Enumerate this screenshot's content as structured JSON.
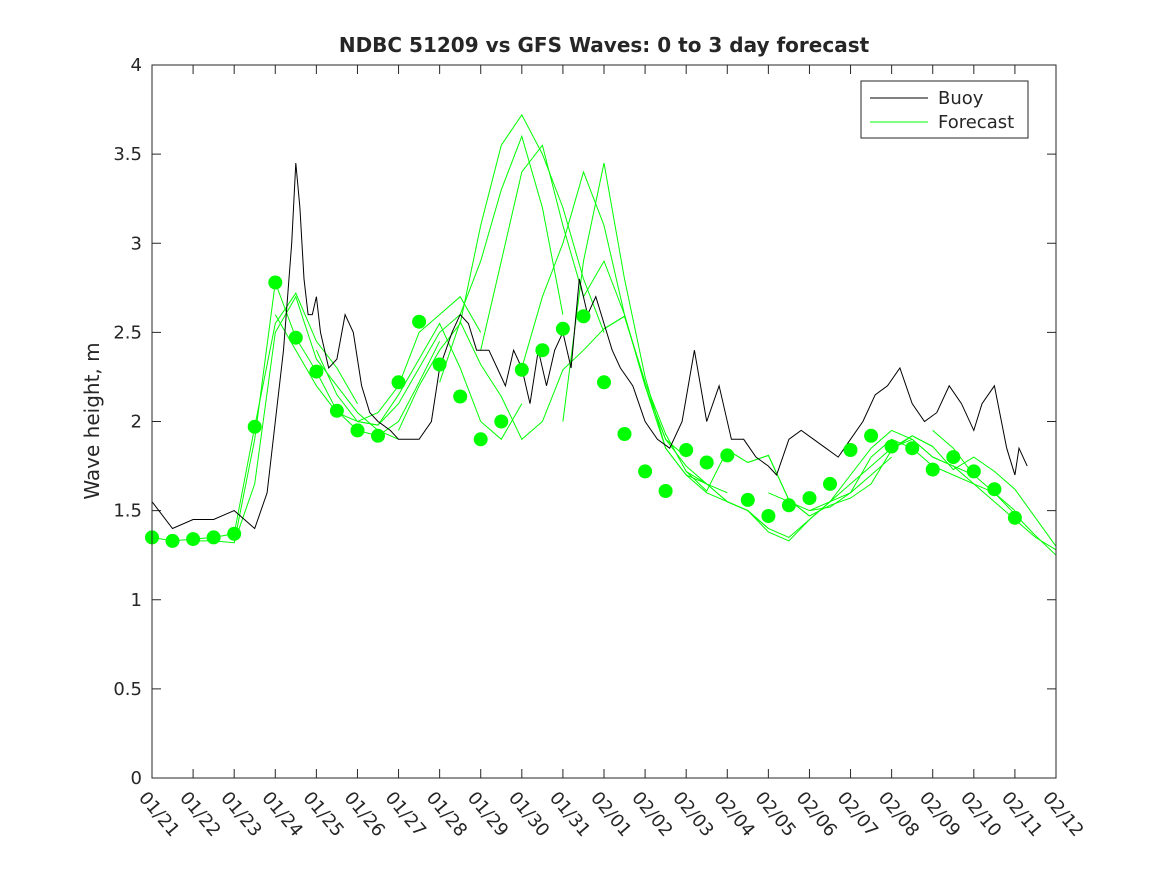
{
  "chart_data": {
    "type": "line",
    "title": "NDBC 51209 vs GFS Waves: 0 to 3 day forecast",
    "xlabel": "",
    "ylabel": "Wave height, m",
    "xlim": [
      0,
      22
    ],
    "ylim": [
      0,
      4
    ],
    "yticks": [
      0,
      0.5,
      1,
      1.5,
      2,
      2.5,
      3,
      3.5,
      4
    ],
    "yticklabels": [
      "0",
      "0.5",
      "1",
      "1.5",
      "2",
      "2.5",
      "3",
      "3.5",
      "4"
    ],
    "xticks": [
      0,
      1,
      2,
      3,
      4,
      5,
      6,
      7,
      8,
      9,
      10,
      11,
      12,
      13,
      14,
      15,
      16,
      17,
      18,
      19,
      20,
      21,
      22
    ],
    "xticklabels": [
      "01/21",
      "01/22",
      "01/23",
      "01/24",
      "01/25",
      "01/26",
      "01/27",
      "01/28",
      "01/29",
      "01/30",
      "01/31",
      "02/01",
      "02/02",
      "02/03",
      "02/04",
      "02/05",
      "02/06",
      "02/07",
      "02/08",
      "02/09",
      "02/10",
      "02/11",
      "02/12"
    ],
    "legend": {
      "location": "top-right",
      "entries": [
        "Buoy",
        "Forecast"
      ]
    },
    "colors": {
      "buoy": "#000000",
      "forecast": "#00ff00",
      "axis": "#262626"
    },
    "buoy": {
      "name": "Buoy",
      "x": [
        0,
        0.5,
        1,
        1.5,
        2,
        2.5,
        2.8,
        3.2,
        3.4,
        3.5,
        3.6,
        3.7,
        3.8,
        3.9,
        4,
        4.1,
        4.3,
        4.5,
        4.7,
        4.9,
        5.1,
        5.3,
        5.5,
        5.8,
        6,
        6.2,
        6.5,
        6.8,
        7,
        7.3,
        7.5,
        7.7,
        7.9,
        8.2,
        8.4,
        8.6,
        8.8,
        9,
        9.2,
        9.4,
        9.6,
        9.8,
        10,
        10.2,
        10.4,
        10.6,
        10.8,
        11,
        11.2,
        11.4,
        11.7,
        12,
        12.3,
        12.6,
        12.9,
        13.2,
        13.5,
        13.8,
        14.1,
        14.4,
        14.7,
        15,
        15.2,
        15.5,
        15.8,
        16.1,
        16.4,
        16.7,
        17,
        17.3,
        17.6,
        17.9,
        18.2,
        18.5,
        18.8,
        19.1,
        19.4,
        19.7,
        20,
        20.2,
        20.5,
        20.8,
        21,
        21.1,
        21.3
      ],
      "values": [
        1.55,
        1.4,
        1.45,
        1.45,
        1.5,
        1.4,
        1.6,
        2.4,
        3.0,
        3.45,
        3.2,
        2.8,
        2.6,
        2.6,
        2.7,
        2.5,
        2.3,
        2.35,
        2.6,
        2.5,
        2.2,
        2.05,
        2.0,
        1.95,
        1.9,
        1.9,
        1.9,
        2.0,
        2.3,
        2.5,
        2.6,
        2.55,
        2.4,
        2.4,
        2.3,
        2.2,
        2.4,
        2.3,
        2.1,
        2.4,
        2.2,
        2.4,
        2.5,
        2.3,
        2.8,
        2.6,
        2.7,
        2.55,
        2.4,
        2.3,
        2.2,
        2.0,
        1.9,
        1.85,
        2.0,
        2.4,
        2.0,
        2.2,
        1.9,
        1.9,
        1.8,
        1.75,
        1.7,
        1.9,
        1.95,
        1.9,
        1.85,
        1.8,
        1.9,
        2.0,
        2.15,
        2.2,
        2.3,
        2.1,
        2.0,
        2.05,
        2.2,
        2.1,
        1.95,
        2.1,
        2.2,
        1.85,
        1.7,
        1.85,
        1.75
      ]
    },
    "forecast_runs": [
      {
        "name": "Forecast",
        "x": [
          0,
          0.5,
          1,
          1.5,
          2,
          2.5,
          3,
          3.5,
          4,
          4.5,
          5
        ],
        "values": [
          1.35,
          1.33,
          1.34,
          1.35,
          1.37,
          1.97,
          2.55,
          2.72,
          2.45,
          2.3,
          2.1
        ]
      },
      {
        "name": "Forecast",
        "x": [
          1,
          1.5,
          2,
          2.5,
          3,
          3.5,
          4,
          4.5,
          5,
          5.5,
          6
        ],
        "values": [
          1.33,
          1.33,
          1.32,
          1.65,
          2.5,
          2.7,
          2.35,
          2.2,
          2.05,
          1.95,
          1.9
        ]
      },
      {
        "name": "Forecast",
        "x": [
          2,
          2.5,
          3,
          3.5,
          4,
          4.5,
          5,
          5.5,
          6,
          6.5,
          7
        ],
        "values": [
          1.32,
          1.9,
          2.78,
          2.47,
          2.28,
          2.06,
          1.95,
          1.92,
          2.0,
          2.22,
          2.45
        ]
      },
      {
        "name": "Forecast",
        "x": [
          3,
          3.5,
          4,
          4.5,
          5,
          5.5,
          6,
          6.5,
          7,
          7.5,
          8
        ],
        "values": [
          2.6,
          2.4,
          2.2,
          2.05,
          2.0,
          2.05,
          2.2,
          2.5,
          2.6,
          2.7,
          2.5
        ]
      },
      {
        "name": "Forecast",
        "x": [
          4,
          4.5,
          5,
          5.5,
          6,
          6.5,
          7,
          7.5,
          8,
          8.5,
          9
        ],
        "values": [
          2.4,
          2.15,
          2.0,
          1.98,
          2.15,
          2.35,
          2.55,
          2.3,
          2.0,
          1.9,
          2.1
        ]
      },
      {
        "name": "Forecast",
        "x": [
          5,
          5.5,
          6,
          6.5,
          7,
          7.5,
          8,
          8.5,
          9,
          9.5,
          10
        ],
        "values": [
          2.0,
          1.98,
          2.1,
          2.3,
          2.5,
          2.6,
          2.9,
          3.3,
          3.6,
          3.2,
          2.6
        ]
      },
      {
        "name": "Forecast",
        "x": [
          6,
          6.5,
          7,
          7.5,
          8,
          8.5,
          9,
          9.5,
          10,
          10.5,
          11
        ],
        "values": [
          1.95,
          2.2,
          2.4,
          2.55,
          3.1,
          3.55,
          3.72,
          3.5,
          3.2,
          2.8,
          2.5
        ]
      },
      {
        "name": "Forecast",
        "x": [
          7,
          7.5,
          8,
          8.5,
          9,
          9.5,
          10,
          10.5,
          11,
          11.5,
          12
        ],
        "values": [
          2.22,
          2.56,
          2.32,
          2.14,
          1.9,
          2.0,
          2.29,
          2.4,
          2.52,
          2.59,
          2.22
        ]
      },
      {
        "name": "Forecast",
        "x": [
          8,
          8.5,
          9,
          9.5,
          10,
          10.5,
          11,
          11.5,
          12,
          12.5,
          13
        ],
        "values": [
          2.4,
          2.9,
          3.4,
          3.55,
          3.1,
          2.7,
          2.9,
          2.6,
          2.2,
          1.9,
          1.8
        ]
      },
      {
        "name": "Forecast",
        "x": [
          9,
          9.5,
          10,
          10.5,
          11,
          11.5,
          12,
          12.5,
          13,
          13.5,
          14
        ],
        "values": [
          2.3,
          2.7,
          3.0,
          3.4,
          3.1,
          2.6,
          2.2,
          1.9,
          1.75,
          1.65,
          1.6
        ]
      },
      {
        "name": "Forecast",
        "x": [
          10,
          10.5,
          11,
          11.5,
          12,
          12.5,
          13,
          13.5,
          14,
          14.5,
          15
        ],
        "values": [
          2.0,
          2.9,
          3.45,
          2.8,
          2.25,
          1.85,
          1.7,
          1.6,
          1.55,
          1.5,
          1.4
        ]
      },
      {
        "name": "Forecast",
        "x": [
          11,
          11.5,
          12,
          12.5,
          13,
          13.5,
          14,
          14.5,
          15,
          15.5,
          16
        ],
        "values": [
          2.52,
          2.59,
          2.22,
          1.93,
          1.72,
          1.61,
          1.84,
          1.77,
          1.81,
          1.56,
          1.47
        ]
      },
      {
        "name": "Forecast",
        "x": [
          12,
          12.5,
          13,
          13.5,
          14,
          14.5,
          15,
          15.5,
          16,
          16.5,
          17
        ],
        "values": [
          2.2,
          1.85,
          1.7,
          1.65,
          1.55,
          1.5,
          1.4,
          1.35,
          1.45,
          1.55,
          1.65
        ]
      },
      {
        "name": "Forecast",
        "x": [
          13,
          13.5,
          14,
          14.5,
          15,
          15.5,
          16,
          16.5,
          17,
          17.5,
          18
        ],
        "values": [
          1.72,
          1.65,
          1.55,
          1.5,
          1.38,
          1.33,
          1.45,
          1.55,
          1.6,
          1.7,
          1.8
        ]
      },
      {
        "name": "Forecast",
        "x": [
          14,
          14.5,
          15,
          15.5,
          16,
          16.5,
          17,
          17.5,
          18,
          18.5,
          19
        ],
        "values": [
          1.84,
          1.77,
          1.81,
          1.56,
          1.47,
          1.53,
          1.57,
          1.65,
          1.84,
          1.92,
          1.86
        ]
      },
      {
        "name": "Forecast",
        "x": [
          15,
          15.5,
          16,
          16.5,
          17,
          17.5,
          18,
          18.5,
          19,
          19.5,
          20
        ],
        "values": [
          1.6,
          1.55,
          1.5,
          1.55,
          1.7,
          1.85,
          1.95,
          1.9,
          1.8,
          1.75,
          1.7
        ]
      },
      {
        "name": "Forecast",
        "x": [
          16,
          16.5,
          17,
          17.5,
          18,
          18.5,
          19,
          19.5,
          20,
          20.5,
          21
        ],
        "values": [
          1.5,
          1.52,
          1.6,
          1.8,
          1.9,
          1.85,
          1.75,
          1.7,
          1.65,
          1.6,
          1.5
        ]
      },
      {
        "name": "Forecast",
        "x": [
          17,
          17.5,
          18,
          18.5,
          19,
          19.5,
          20,
          20.5,
          21,
          21.5,
          22
        ],
        "values": [
          1.65,
          1.75,
          1.85,
          1.92,
          1.86,
          1.73,
          1.8,
          1.72,
          1.62,
          1.46,
          1.3
        ]
      },
      {
        "name": "Forecast",
        "x": [
          18,
          18.5,
          19,
          19.5,
          20,
          20.5,
          21,
          21.5,
          22
        ],
        "values": [
          1.85,
          1.9,
          1.8,
          1.75,
          1.65,
          1.55,
          1.45,
          1.35,
          1.28
        ]
      },
      {
        "name": "Forecast",
        "x": [
          19,
          19.5,
          20,
          20.5,
          21,
          21.5,
          22
        ],
        "values": [
          1.95,
          1.85,
          1.7,
          1.6,
          1.48,
          1.36,
          1.25
        ]
      }
    ],
    "analysis_points": {
      "name": "Forecast",
      "x": [
        0,
        0.5,
        1,
        1.5,
        2,
        2.5,
        3,
        3.5,
        4,
        4.5,
        5,
        5.5,
        6,
        6.5,
        7,
        7.5,
        8,
        8.5,
        9,
        9.5,
        10,
        10.5,
        11,
        11.5,
        12,
        12.5,
        13,
        13.5,
        14,
        14.5,
        15,
        15.5,
        16,
        16.5,
        17,
        17.5,
        18,
        18.5,
        19,
        19.5,
        20,
        20.5,
        21
      ],
      "values": [
        1.35,
        1.33,
        1.34,
        1.35,
        1.37,
        1.97,
        2.78,
        2.47,
        2.28,
        2.06,
        1.95,
        1.92,
        2.22,
        2.56,
        2.32,
        2.14,
        1.9,
        2.0,
        2.29,
        2.4,
        2.52,
        2.59,
        2.22,
        1.93,
        1.72,
        1.61,
        1.84,
        1.77,
        1.81,
        1.56,
        1.47,
        1.53,
        1.57,
        1.65,
        1.84,
        1.92,
        1.86,
        1.85,
        1.73,
        1.8,
        1.72,
        1.62,
        1.46
      ]
    }
  }
}
